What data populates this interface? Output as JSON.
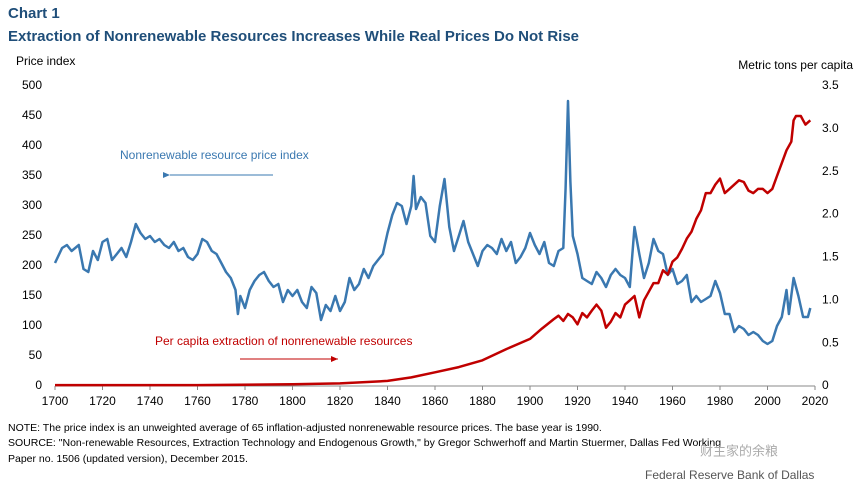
{
  "chart_data": {
    "type": "line",
    "label": "Chart 1",
    "title": "Extraction of Nonrenewable Resources Increases While Real Prices Do Not Rise",
    "y_label": "Price index",
    "y2_label": "Metric tons per capita",
    "xlim": [
      1700,
      2020
    ],
    "xticks": [
      1700,
      1720,
      1740,
      1760,
      1780,
      1800,
      1820,
      1840,
      1860,
      1880,
      1900,
      1920,
      1940,
      1960,
      1980,
      2000,
      2020
    ],
    "ylim": [
      0,
      500
    ],
    "yticks": [
      0,
      50,
      100,
      150,
      200,
      250,
      300,
      350,
      400,
      450,
      500
    ],
    "y2lim": [
      0,
      3.5
    ],
    "y2ticks": [
      0,
      0.5,
      {
        "value": 1,
        "label": "1.0"
      },
      1.5,
      {
        "value": 2,
        "label": "2.0"
      },
      2.5,
      {
        "value": 3,
        "label": "3.0"
      },
      3.5
    ],
    "grid": false,
    "series": [
      {
        "name": "Nonrenewable resource price index",
        "color": "#3a78b0",
        "x": [
          1700,
          1703,
          1705,
          1707,
          1710,
          1712,
          1714,
          1716,
          1718,
          1720,
          1722,
          1724,
          1726,
          1728,
          1730,
          1732,
          1734,
          1736,
          1738,
          1740,
          1742,
          1744,
          1746,
          1748,
          1750,
          1752,
          1754,
          1756,
          1758,
          1760,
          1762,
          1764,
          1766,
          1768,
          1770,
          1772,
          1774,
          1776,
          1777,
          1778,
          1780,
          1782,
          1784,
          1786,
          1788,
          1790,
          1792,
          1794,
          1796,
          1798,
          1800,
          1802,
          1804,
          1806,
          1808,
          1810,
          1812,
          1814,
          1816,
          1818,
          1820,
          1822,
          1824,
          1826,
          1828,
          1830,
          1832,
          1834,
          1836,
          1838,
          1840,
          1842,
          1844,
          1846,
          1848,
          1850,
          1851,
          1852,
          1854,
          1856,
          1858,
          1860,
          1862,
          1864,
          1866,
          1868,
          1870,
          1872,
          1874,
          1876,
          1878,
          1880,
          1882,
          1884,
          1886,
          1888,
          1890,
          1892,
          1894,
          1896,
          1898,
          1900,
          1902,
          1904,
          1906,
          1908,
          1910,
          1912,
          1914,
          1915,
          1916,
          1917,
          1918,
          1920,
          1922,
          1924,
          1926,
          1928,
          1930,
          1932,
          1934,
          1936,
          1938,
          1940,
          1942,
          1944,
          1946,
          1948,
          1950,
          1952,
          1954,
          1956,
          1958,
          1960,
          1962,
          1964,
          1966,
          1968,
          1970,
          1972,
          1974,
          1976,
          1978,
          1980,
          1982,
          1984,
          1986,
          1988,
          1990,
          1992,
          1994,
          1996,
          1998,
          2000,
          2002,
          2004,
          2006,
          2008,
          2009,
          2011,
          2013,
          2015,
          2017,
          2018
        ],
        "values": [
          205,
          230,
          235,
          225,
          235,
          195,
          190,
          225,
          210,
          240,
          245,
          210,
          220,
          230,
          215,
          240,
          270,
          255,
          245,
          250,
          240,
          245,
          235,
          230,
          240,
          225,
          230,
          215,
          210,
          220,
          245,
          240,
          225,
          220,
          205,
          190,
          180,
          160,
          120,
          150,
          130,
          160,
          175,
          185,
          190,
          175,
          165,
          170,
          140,
          160,
          150,
          160,
          140,
          130,
          165,
          155,
          110,
          135,
          125,
          150,
          125,
          140,
          180,
          160,
          170,
          195,
          180,
          200,
          210,
          220,
          255,
          285,
          305,
          300,
          270,
          300,
          350,
          295,
          315,
          305,
          250,
          240,
          300,
          345,
          265,
          225,
          250,
          275,
          240,
          220,
          200,
          225,
          235,
          230,
          220,
          245,
          225,
          240,
          205,
          215,
          230,
          255,
          235,
          220,
          240,
          205,
          200,
          225,
          230,
          330,
          475,
          340,
          250,
          220,
          180,
          175,
          170,
          190,
          180,
          165,
          185,
          195,
          185,
          180,
          165,
          265,
          220,
          180,
          205,
          245,
          225,
          220,
          185,
          195,
          170,
          175,
          185,
          140,
          150,
          140,
          145,
          150,
          175,
          155,
          120,
          120,
          90,
          100,
          95,
          85,
          90,
          85,
          75,
          70,
          75,
          100,
          115,
          160,
          120,
          180,
          150,
          115,
          115,
          130
        ]
      },
      {
        "name": "Per capita extraction of nonrenewable resources",
        "color": "#c00000",
        "axis": "y2",
        "x": [
          1700,
          1760,
          1800,
          1820,
          1840,
          1850,
          1860,
          1870,
          1880,
          1890,
          1900,
          1905,
          1910,
          1912,
          1914,
          1916,
          1918,
          1920,
          1922,
          1924,
          1926,
          1928,
          1930,
          1932,
          1934,
          1936,
          1938,
          1940,
          1942,
          1944,
          1946,
          1948,
          1950,
          1952,
          1954,
          1956,
          1958,
          1960,
          1962,
          1964,
          1966,
          1968,
          1970,
          1972,
          1974,
          1976,
          1978,
          1980,
          1982,
          1984,
          1986,
          1988,
          1990,
          1992,
          1994,
          1996,
          1998,
          2000,
          2002,
          2004,
          2006,
          2008,
          2010,
          2011,
          2012,
          2014,
          2015,
          2016,
          2018
        ],
        "values": [
          0.01,
          0.01,
          0.02,
          0.03,
          0.06,
          0.1,
          0.16,
          0.22,
          0.3,
          0.43,
          0.55,
          0.67,
          0.78,
          0.82,
          0.76,
          0.84,
          0.8,
          0.72,
          0.85,
          0.8,
          0.88,
          0.95,
          0.88,
          0.68,
          0.75,
          0.85,
          0.8,
          0.95,
          1.0,
          1.05,
          0.8,
          1.0,
          1.1,
          1.2,
          1.2,
          1.35,
          1.3,
          1.45,
          1.5,
          1.6,
          1.72,
          1.8,
          1.95,
          2.05,
          2.25,
          2.25,
          2.35,
          2.42,
          2.25,
          2.3,
          2.35,
          2.4,
          2.38,
          2.28,
          2.25,
          2.3,
          2.3,
          2.25,
          2.3,
          2.45,
          2.6,
          2.75,
          2.85,
          3.1,
          3.15,
          3.15,
          3.1,
          3.05,
          3.1
        ]
      }
    ],
    "notes": [
      "NOTE: The price index is an unweighted average of 65 inflation-adjusted nonrenewable resource prices. The base year is 1990.",
      "SOURCE: \"Non-renewable Resources, Extraction Technology and Endogenous Growth,\" by Gregor Schwerhoff and Martin Stuermer, Dallas Fed Working",
      "Paper no. 1506 (updated version), December 2015."
    ],
    "credit": "Federal Reserve Bank of Dallas",
    "watermark": "财主家的余粮"
  }
}
